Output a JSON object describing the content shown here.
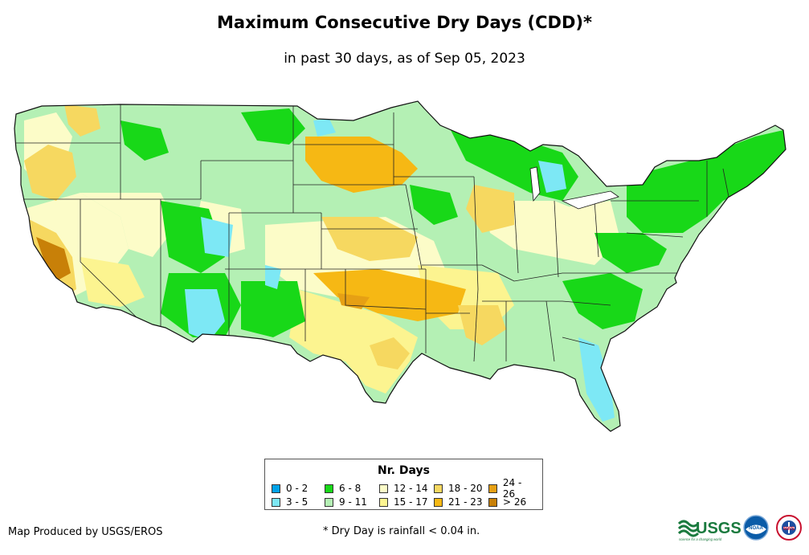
{
  "title": "Maximum Consecutive Dry Days (CDD)*",
  "subtitle": "in past 30 days, as of Sep 05, 2023",
  "map": {
    "region": "Contiguous United States",
    "description": "Choropleth map of maximum consecutive dry days by area"
  },
  "legend": {
    "title": "Nr. Days",
    "items": [
      {
        "label": "0 - 2",
        "color": "#00a2e8"
      },
      {
        "label": "3 - 5",
        "color": "#7de8f5"
      },
      {
        "label": "6 - 8",
        "color": "#18d818"
      },
      {
        "label": "9 - 11",
        "color": "#b4f0b4"
      },
      {
        "label": "12 - 14",
        "color": "#fcfcc8"
      },
      {
        "label": "15 - 17",
        "color": "#fcf490"
      },
      {
        "label": "18 - 20",
        "color": "#f6d860"
      },
      {
        "label": "21 - 23",
        "color": "#f6b814"
      },
      {
        "label": "24 - 26",
        "color": "#e6a014"
      },
      {
        "label": "> 26",
        "color": "#c88008"
      }
    ]
  },
  "credit": "Map Produced by USGS/EROS",
  "footnote": "* Dry Day is rainfall < 0.04 in.",
  "logos": {
    "usgs": "USGS",
    "usgs_tagline": "science for a changing world",
    "noaa": "NOAA",
    "nws": "NWS"
  }
}
